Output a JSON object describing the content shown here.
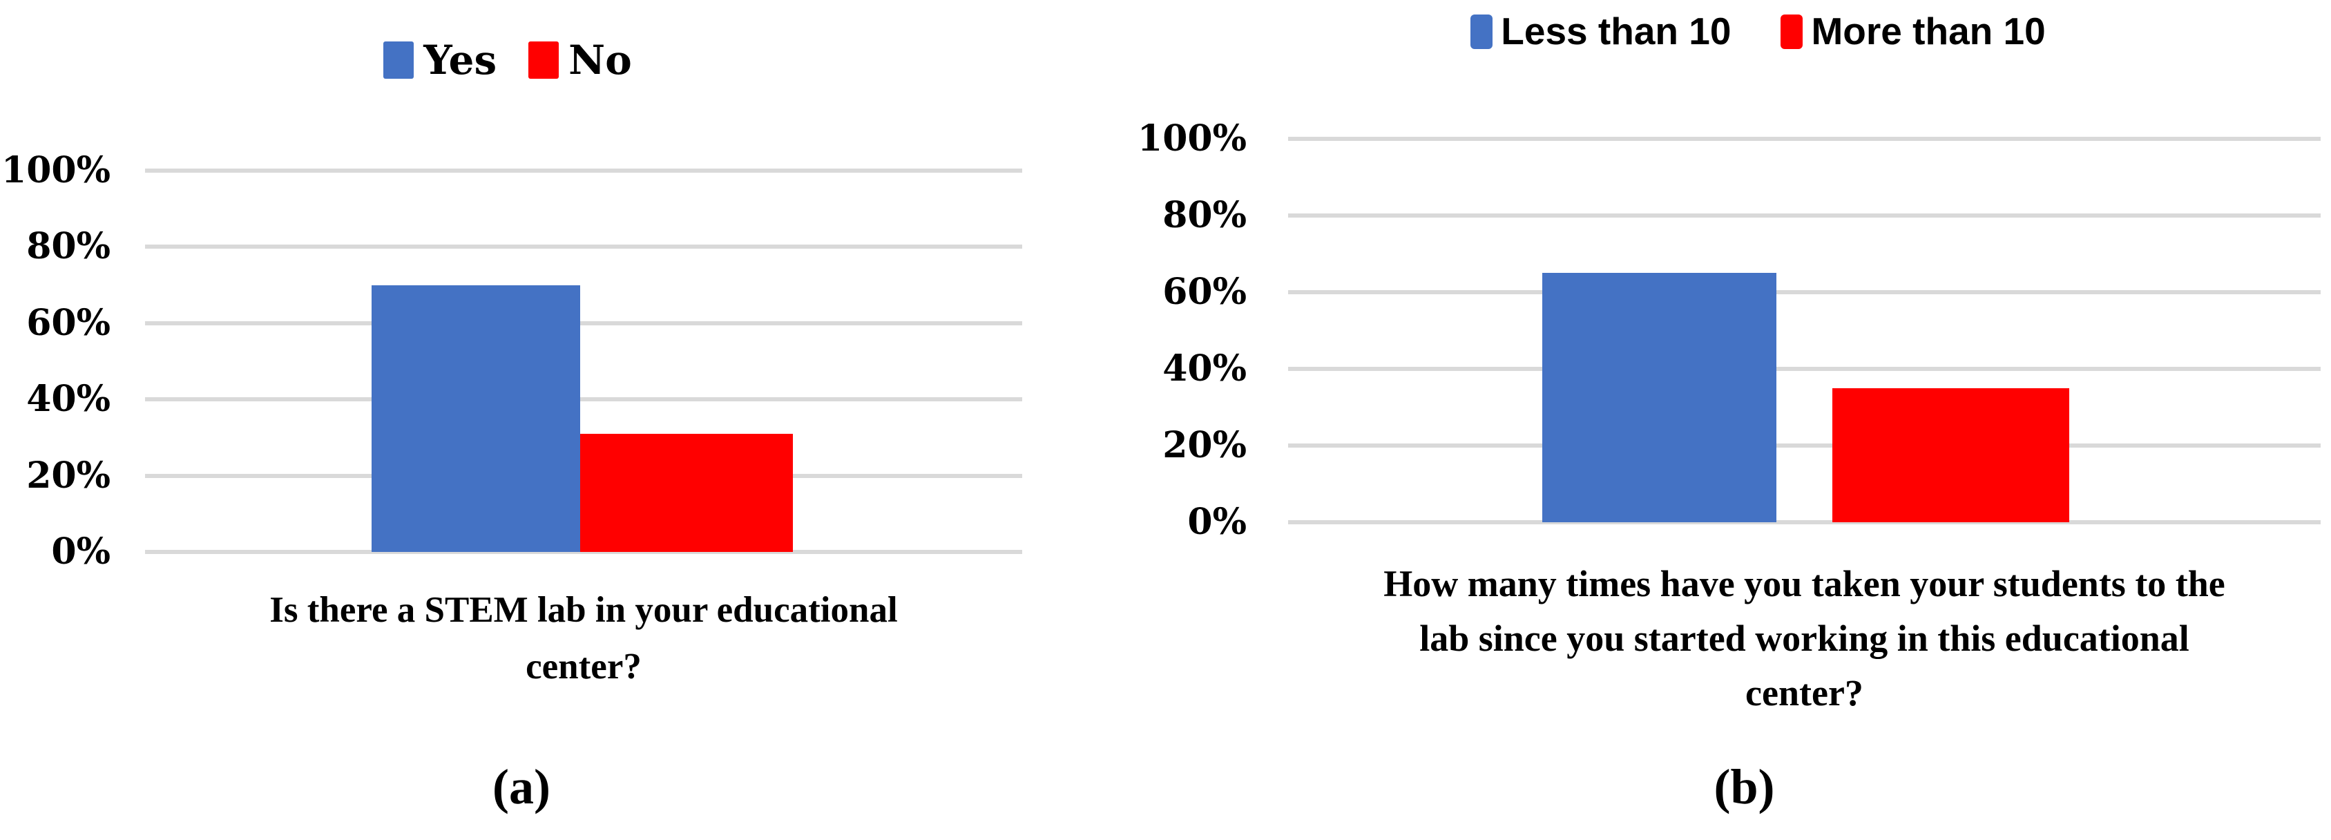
{
  "figure": {
    "background": "#FFFFFF",
    "panel_labels": {
      "a": "(a)",
      "b": "(b)"
    },
    "colors": {
      "series1": "#4472C4",
      "series2": "#FF0000",
      "gridline": "#D9D9D9",
      "text": "#000000"
    }
  },
  "chart_data": [
    {
      "type": "bar",
      "panel": "a",
      "title": "Is there a STEM lab in your educational center?",
      "title_lines": [
        "Is there a STEM lab in your educational",
        "center?"
      ],
      "categories": [
        "Is there a STEM lab in your educational center?"
      ],
      "series": [
        {
          "name": "Yes",
          "values": [
            70
          ],
          "color": "#4472C4"
        },
        {
          "name": "No",
          "values": [
            31
          ],
          "color": "#FF0000"
        }
      ],
      "ylim": [
        0,
        100
      ],
      "yticks": [
        "100%",
        "80%",
        "60%",
        "40%",
        "20%",
        "0%"
      ],
      "grid": true,
      "legend_position": "top"
    },
    {
      "type": "bar",
      "panel": "b",
      "title": "How many times have you taken your students to the lab since you started working in this educational center?",
      "title_lines": [
        "How many times have you taken your students to the",
        "lab since you started working in this educational",
        "center?"
      ],
      "categories": [
        "How many times have you taken your students to the lab since you started working in this educational center?"
      ],
      "series": [
        {
          "name": "Less than 10",
          "values": [
            65
          ],
          "color": "#4472C4"
        },
        {
          "name": "More than 10",
          "values": [
            35
          ],
          "color": "#FF0000"
        }
      ],
      "ylim": [
        0,
        100
      ],
      "yticks": [
        "100%",
        "80%",
        "60%",
        "40%",
        "20%",
        "0%"
      ],
      "grid": true,
      "legend_position": "top"
    }
  ]
}
